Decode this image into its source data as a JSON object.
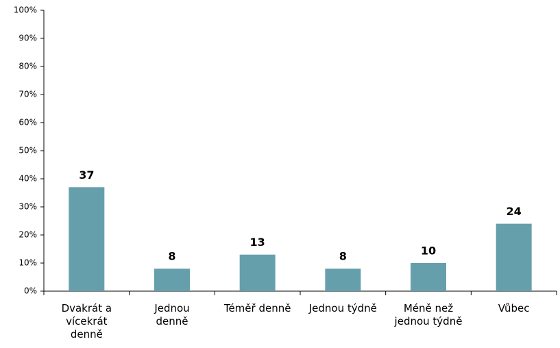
{
  "chart_data": {
    "type": "bar",
    "categories": [
      "Dvakrát a\nvícekrát\ndenně",
      "Jednou\ndenně",
      "Téměř denně",
      "Jednou týdně",
      "Méně než\njednou týdně",
      "Vůbec"
    ],
    "values": [
      37,
      8,
      13,
      8,
      10,
      24
    ],
    "color": "#659fac",
    "ylim": [
      0,
      100
    ],
    "yticks": [
      {
        "value": 0,
        "label": "0%"
      },
      {
        "value": 10,
        "label": "10%"
      },
      {
        "value": 20,
        "label": "20%"
      },
      {
        "value": 30,
        "label": "30%"
      },
      {
        "value": 40,
        "label": "40%"
      },
      {
        "value": 50,
        "label": "50%"
      },
      {
        "value": 60,
        "label": "60%"
      },
      {
        "value": 70,
        "label": "70%"
      },
      {
        "value": 80,
        "label": "80%"
      },
      {
        "value": 90,
        "label": "90%"
      },
      {
        "value": 100,
        "label": "100%"
      }
    ],
    "grid": false
  }
}
